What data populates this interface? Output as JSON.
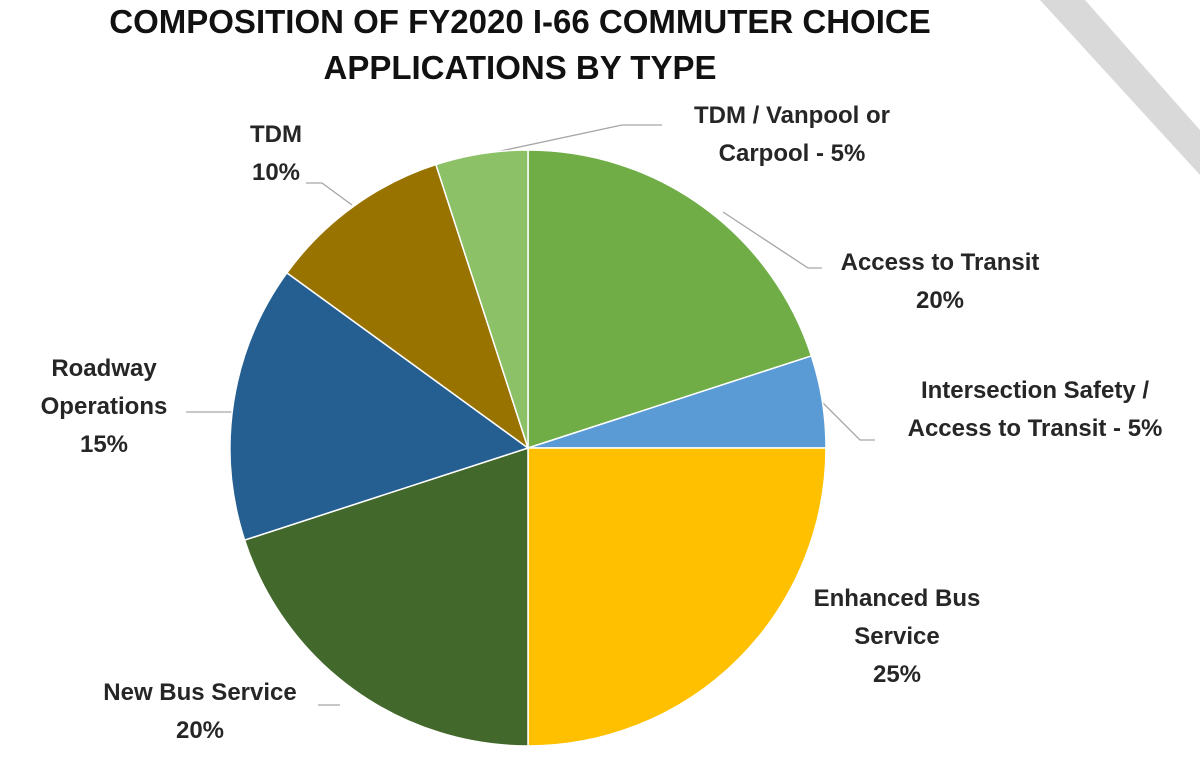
{
  "chart_data": {
    "type": "pie",
    "title": "COMPOSITION OF FY2020 I-66 COMMUTER CHOICE APPLICATIONS BY TYPE",
    "title_lines": [
      "COMPOSITION OF FY2020 I-66 COMMUTER CHOICE",
      "APPLICATIONS BY TYPE"
    ],
    "start_angle_deg": 0,
    "direction": "clockwise",
    "legend": "none",
    "slices": [
      {
        "label": "Access to Transit",
        "value": 20,
        "percent_text": "20%",
        "color": "#70ad47",
        "label_lines": [
          "Access to Transit",
          "20%"
        ]
      },
      {
        "label": "Intersection Safety / Access to Transit",
        "value": 5,
        "percent_text": "5%",
        "color": "#5b9bd5",
        "label_lines": [
          "Intersection Safety /",
          "Access to Transit - 5%"
        ]
      },
      {
        "label": "Enhanced Bus Service",
        "value": 25,
        "percent_text": "25%",
        "color": "#ffc000",
        "label_lines": [
          "Enhanced Bus",
          "Service",
          "25%"
        ]
      },
      {
        "label": "New Bus Service",
        "value": 20,
        "percent_text": "20%",
        "color": "#43682b",
        "label_lines": [
          "New Bus Service",
          "20%"
        ]
      },
      {
        "label": "Roadway Operations",
        "value": 15,
        "percent_text": "15%",
        "color": "#255e91",
        "label_lines": [
          "Roadway",
          "Operations",
          "15%"
        ]
      },
      {
        "label": "TDM",
        "value": 10,
        "percent_text": "10%",
        "color": "#997300",
        "label_lines": [
          "TDM",
          "10%"
        ]
      },
      {
        "label": "TDM / Vanpool or Carpool",
        "value": 5,
        "percent_text": "5%",
        "color": "#8cc168",
        "label_lines": [
          "TDM / Vanpool or",
          "Carpool - 5%"
        ]
      }
    ]
  }
}
